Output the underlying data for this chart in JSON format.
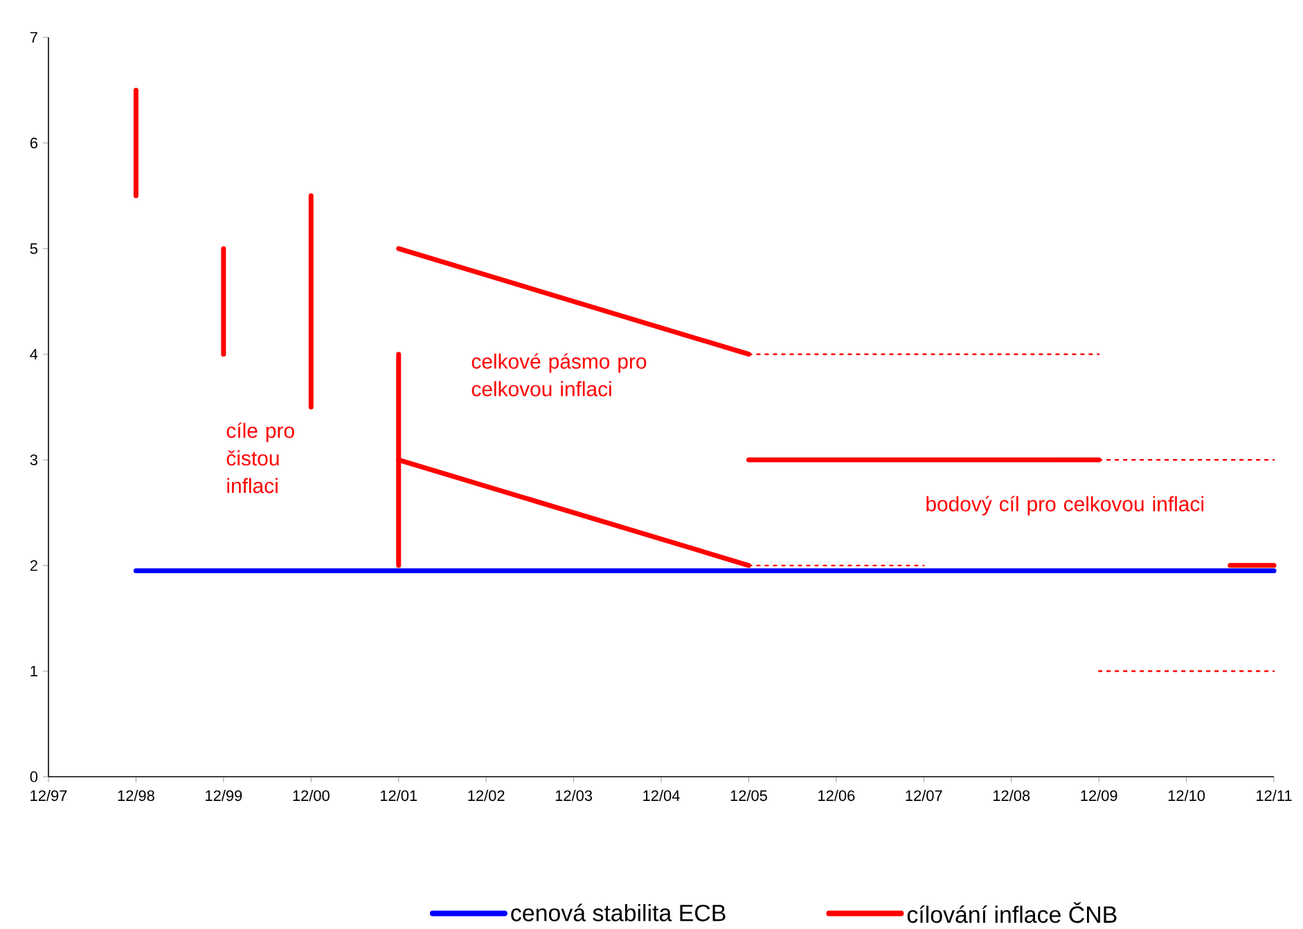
{
  "chart_data": {
    "type": "line",
    "xlim": [
      "1997-12",
      "2011-12"
    ],
    "ylim": [
      0,
      7
    ],
    "xticks": [
      {
        "value": "1997-12",
        "label": "12/97"
      },
      {
        "value": "1998-12",
        "label": "12/98"
      },
      {
        "value": "1999-12",
        "label": "12/99"
      },
      {
        "value": "2000-12",
        "label": "12/00"
      },
      {
        "value": "2001-12",
        "label": "12/01"
      },
      {
        "value": "2002-12",
        "label": "12/02"
      },
      {
        "value": "2003-12",
        "label": "12/03"
      },
      {
        "value": "2004-12",
        "label": "12/04"
      },
      {
        "value": "2005-12",
        "label": "12/05"
      },
      {
        "value": "2006-12",
        "label": "12/06"
      },
      {
        "value": "2007-12",
        "label": "12/07"
      },
      {
        "value": "2008-12",
        "label": "12/08"
      },
      {
        "value": "2009-12",
        "label": "12/09"
      },
      {
        "value": "2010-12",
        "label": "12/10"
      },
      {
        "value": "2011-12",
        "label": "12/11"
      }
    ],
    "yticks": [
      0,
      1,
      2,
      3,
      4,
      5,
      6,
      7
    ],
    "legend": "bottom",
    "series": [
      {
        "name": "cenová stabilita ECB",
        "color": "#0000ff",
        "line_style": "solid",
        "x": [
          "1998-12",
          "2011-12"
        ],
        "values": [
          1.95,
          1.95
        ]
      },
      {
        "name": "cílování inflace ČNB",
        "color": "#ff0000",
        "line_style": "solid",
        "x": [
          "1998-12",
          "1998-12"
        ],
        "values": [
          5.5,
          6.5
        ]
      },
      {
        "color": "#ff0000",
        "line_style": "solid",
        "x": [
          "1999-12",
          "1999-12"
        ],
        "values": [
          4,
          5
        ]
      },
      {
        "color": "#ff0000",
        "line_style": "solid",
        "x": [
          "2000-12",
          "2000-12"
        ],
        "values": [
          3.5,
          5.5
        ]
      },
      {
        "color": "#ff0000",
        "line_style": "solid",
        "x": [
          "2001-12",
          "2001-12"
        ],
        "values": [
          2,
          4
        ]
      },
      {
        "color": "#ff0000",
        "line_style": "solid",
        "x": [
          "2001-12",
          "2005-12"
        ],
        "values": [
          5,
          4
        ]
      },
      {
        "color": "#ff0000",
        "line_style": "solid",
        "x": [
          "2001-12",
          "2005-12"
        ],
        "values": [
          3,
          2
        ]
      },
      {
        "color": "#ff0000",
        "line_style": "solid",
        "x": [
          "2005-12",
          "2009-12"
        ],
        "values": [
          3,
          3
        ]
      },
      {
        "color": "#ff0000",
        "line_style": "solid",
        "x": [
          "2011-06",
          "2011-12"
        ],
        "values": [
          2,
          2
        ]
      },
      {
        "color": "#ff0000",
        "line_style": "dotted",
        "x": [
          "2005-12",
          "2009-12"
        ],
        "values": [
          4,
          4
        ]
      },
      {
        "color": "#ff0000",
        "line_style": "dotted",
        "x": [
          "2005-12",
          "2007-12"
        ],
        "values": [
          2,
          2
        ]
      },
      {
        "color": "#ff0000",
        "line_style": "dotted",
        "x": [
          "2009-12",
          "2011-12"
        ],
        "values": [
          3,
          3
        ]
      },
      {
        "color": "#ff0000",
        "line_style": "dotted",
        "x": [
          "2009-12",
          "2011-12"
        ],
        "values": [
          1,
          1
        ]
      }
    ],
    "annotations": [
      "cíle pro čistou inflaci",
      "celkové pásmo pro celkovou inflaci",
      "bodový cíl pro celkovou inflaci"
    ]
  }
}
